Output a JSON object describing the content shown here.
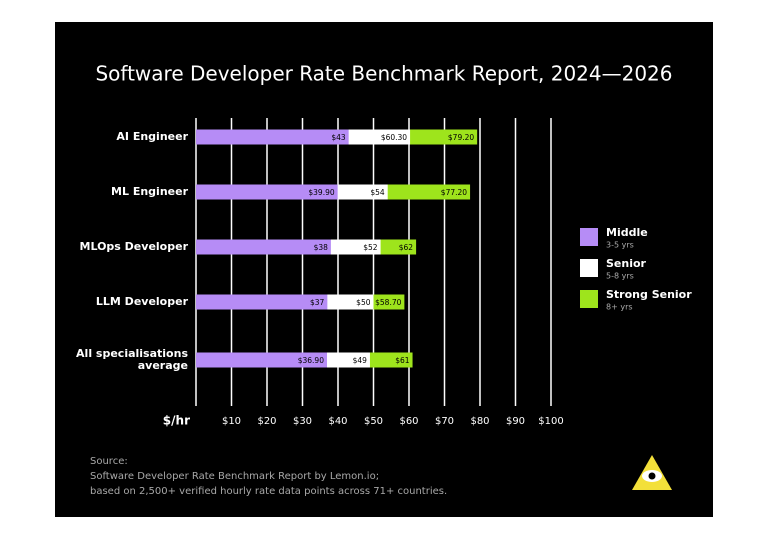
{
  "chart_data": {
    "type": "overlap_bar",
    "title": "Software Developer Rate Benchmark Report, 2024—2026",
    "categories": [
      "AI Engineer",
      "ML Engineer",
      "MLOps Developer",
      "LLM Developer",
      "All specialisations average"
    ],
    "series": [
      {
        "name": "Middle",
        "description": "3-5 yrs",
        "color": "#b68cf6",
        "values": [
          43,
          39.9,
          38,
          37,
          36.9
        ],
        "value_labels": [
          "$43",
          "$39.90",
          "$38",
          "$37",
          "$36.90"
        ]
      },
      {
        "name": "Senior",
        "description": "5-8 yrs",
        "color": "#ffffff",
        "values": [
          60.3,
          54,
          52,
          50,
          49
        ],
        "value_labels": [
          "$60.30",
          "$54",
          "$52",
          "$50",
          "$49"
        ]
      },
      {
        "name": "Strong Senior",
        "description": "8+ yrs",
        "color": "#9ee41c",
        "values": [
          79.2,
          77.2,
          62,
          58.7,
          61
        ],
        "value_labels": [
          "$79.20",
          "$77.20",
          "$62",
          "$58.70",
          "$61"
        ]
      }
    ],
    "x_label": "$/hr",
    "xlim": [
      0,
      100
    ],
    "xticks": [
      {
        "value": 10,
        "label": "$10"
      },
      {
        "value": 20,
        "label": "$20"
      },
      {
        "value": 30,
        "label": "$30"
      },
      {
        "value": 40,
        "label": "$40"
      },
      {
        "value": 50,
        "label": "$50"
      },
      {
        "value": 60,
        "label": "$60"
      },
      {
        "value": 70,
        "label": "$70"
      },
      {
        "value": 80,
        "label": "$80"
      },
      {
        "value": 90,
        "label": "$90"
      },
      {
        "value": 100,
        "label": "$100"
      }
    ],
    "grid": true,
    "source": [
      "Source:",
      "Software Developer Rate Benchmark Report by Lemon.io;",
      "based on 2,500+ verified hourly rate data points across 71+ countries."
    ]
  }
}
